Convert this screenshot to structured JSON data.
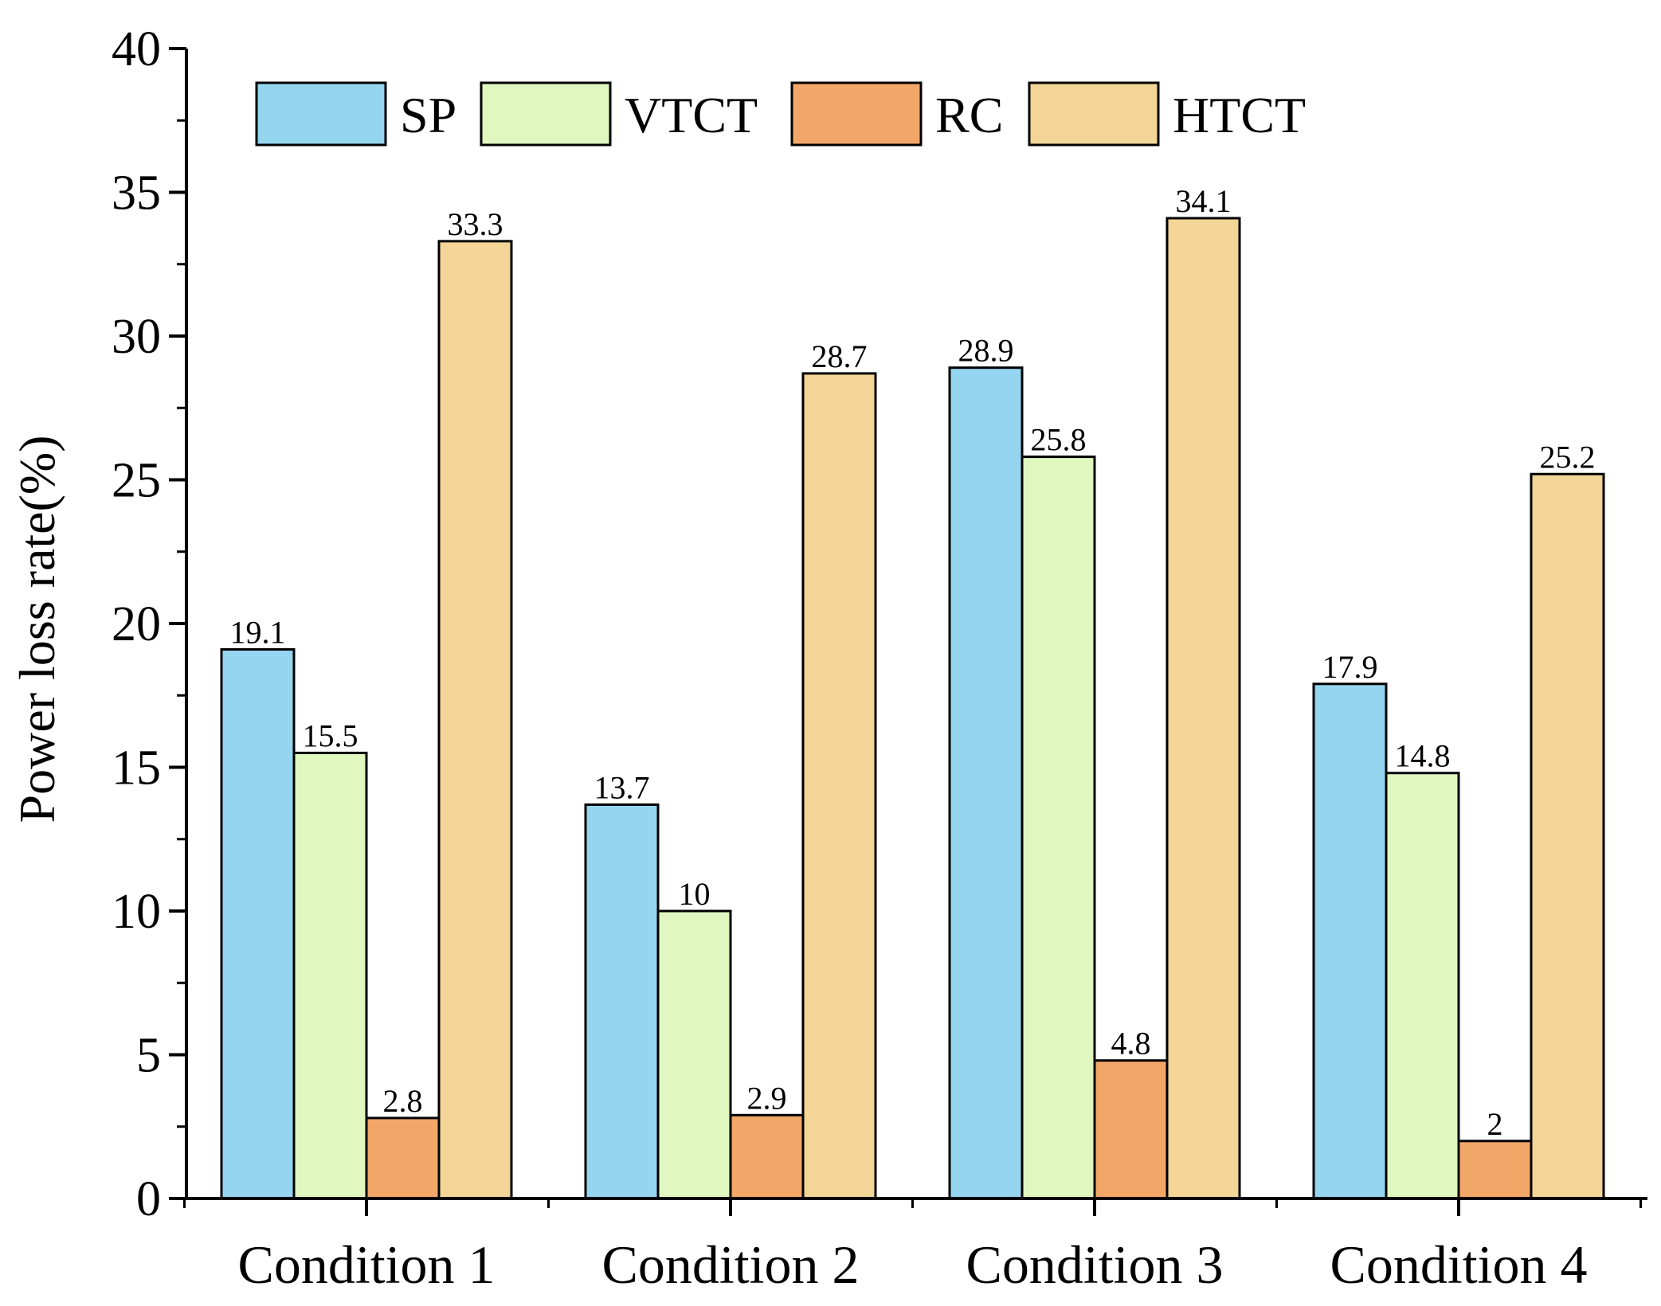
{
  "chart_data": {
    "type": "bar",
    "title": "",
    "xlabel": "",
    "ylabel": "Power loss rate(%)",
    "ylim": [
      0,
      40
    ],
    "yticks": [
      0,
      5,
      10,
      15,
      20,
      25,
      30,
      35,
      40
    ],
    "categories": [
      "Condition 1",
      "Condition 2",
      "Condition 3",
      "Condition 4"
    ],
    "series": [
      {
        "name": "SP",
        "color": "#96d5f0",
        "values": [
          19.1,
          13.7,
          28.9,
          17.9
        ],
        "labels": [
          "19.1",
          "13.7",
          "28.9",
          "17.9"
        ]
      },
      {
        "name": "VTCT",
        "color": "#e0f7c0",
        "values": [
          15.5,
          10,
          25.8,
          14.8
        ],
        "labels": [
          "15.5",
          "10",
          "25.8",
          "14.8"
        ]
      },
      {
        "name": "RC",
        "color": "#f2a769",
        "values": [
          2.8,
          2.9,
          4.8,
          2
        ],
        "labels": [
          "2.8",
          "2.9",
          "4.8",
          "2"
        ]
      },
      {
        "name": "HTCT",
        "color": "#f2d597",
        "values": [
          33.3,
          28.7,
          34.1,
          25.2
        ],
        "labels": [
          "33.3",
          "28.7",
          "34.1",
          "25.2"
        ]
      }
    ],
    "legend": "top-left, inside plot, single row",
    "grid": false
  }
}
